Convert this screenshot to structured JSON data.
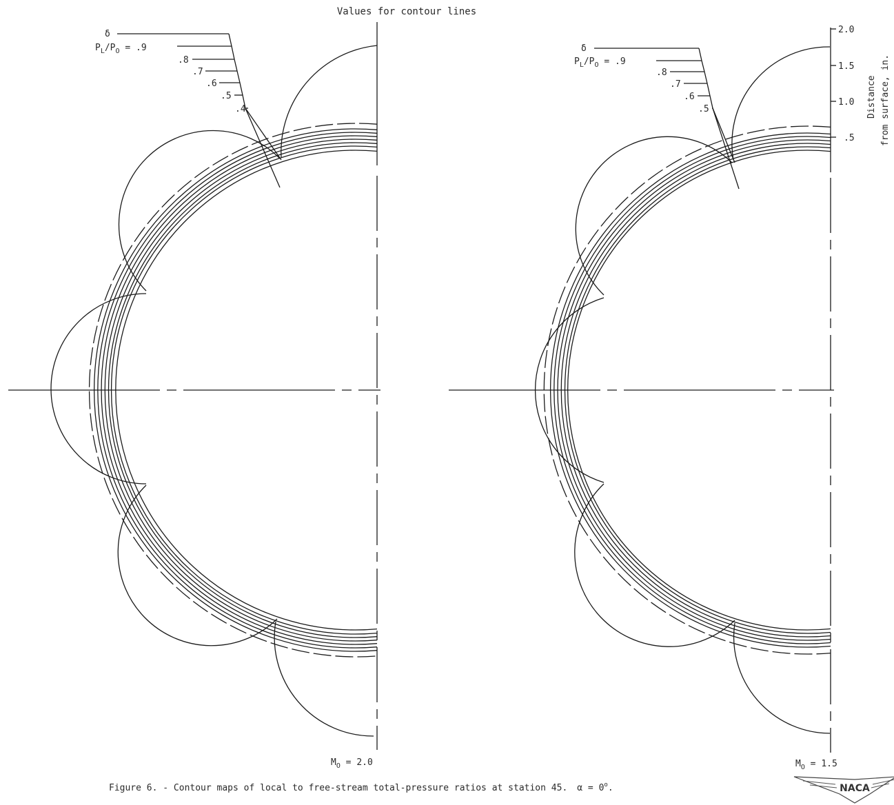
{
  "header": "Values for contour lines",
  "left_panel": {
    "legend": {
      "delta": "δ",
      "ratio_prefix": "P",
      "ratio_sub_l": "L",
      "ratio_mid": "/P",
      "ratio_sub_o": "O",
      "ratio_eq": " = ",
      "values": [
        ".9",
        ".8",
        ".7",
        ".6",
        ".5",
        ".4"
      ]
    },
    "mach_prefix": "M",
    "mach_sub": "O",
    "mach_value": " = 2.0"
  },
  "right_panel": {
    "legend": {
      "delta": "δ",
      "ratio_prefix": "P",
      "ratio_sub_l": "L",
      "ratio_mid": "/P",
      "ratio_sub_o": "O",
      "ratio_eq": " = ",
      "values": [
        ".9",
        ".8",
        ".7",
        ".6",
        ".5"
      ]
    },
    "mach_prefix": "M",
    "mach_sub": "O",
    "mach_value": " = 1.5"
  },
  "scale": {
    "ticks": [
      "2.0",
      "1.5",
      "1.0",
      ".5"
    ],
    "label_line1": "Distance",
    "label_line2": "from surface, in."
  },
  "caption": {
    "text": "Figure 6. - Contour maps of local to free-stream total-pressure ratios at station 45.",
    "alpha": "α = 0",
    "alpha_sup": "o",
    "alpha_end": "."
  },
  "logo": "NACA"
}
